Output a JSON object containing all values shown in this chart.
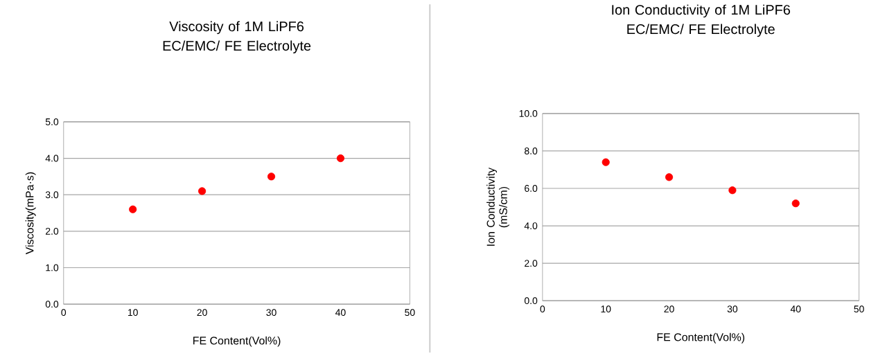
{
  "chart_data": [
    {
      "type": "scatter",
      "title": "Viscosity of 1M LiPF6 EC/EMC/ FE Electrolyte",
      "xlabel": "FE Content(Vol%)",
      "ylabel": "Viscosity(mPa·s)",
      "x": [
        10,
        20,
        30,
        40
      ],
      "values": [
        2.6,
        3.1,
        3.5,
        4.0
      ],
      "color": "#ff0000",
      "marker": "circle",
      "grid": "y",
      "xlim": [
        0,
        50
      ],
      "ylim": [
        0,
        5
      ],
      "xticks": [
        0,
        10,
        20,
        30,
        40,
        50
      ],
      "yticks": [
        {
          "value": 0,
          "label": "0.0"
        },
        {
          "value": 1,
          "label": "1.0"
        },
        {
          "value": 2,
          "label": "2.0"
        },
        {
          "value": 3,
          "label": "3.0"
        },
        {
          "value": 4,
          "label": "4.0"
        },
        {
          "value": 5,
          "label": "5.0"
        }
      ]
    },
    {
      "type": "scatter",
      "title": "Ion Conductivity of 1M LiPF6 EC/EMC/ FE Electrolyte",
      "xlabel": "FE Content(Vol%)",
      "ylabel": "Ion Conductivity (mS/cm)",
      "x": [
        10,
        20,
        30,
        40
      ],
      "values": [
        7.4,
        6.6,
        5.9,
        5.2
      ],
      "color": "#ff0000",
      "marker": "circle",
      "grid": "y",
      "xlim": [
        0,
        50
      ],
      "ylim": [
        0,
        10
      ],
      "xticks": [
        0,
        10,
        20,
        30,
        40,
        50
      ],
      "yticks": [
        {
          "value": 0,
          "label": "0.0"
        },
        {
          "value": 2,
          "label": "2.0"
        },
        {
          "value": 4,
          "label": "4.0"
        },
        {
          "value": 6,
          "label": "6.0"
        },
        {
          "value": 8,
          "label": "8.0"
        },
        {
          "value": 10,
          "label": "10.0"
        }
      ]
    }
  ]
}
